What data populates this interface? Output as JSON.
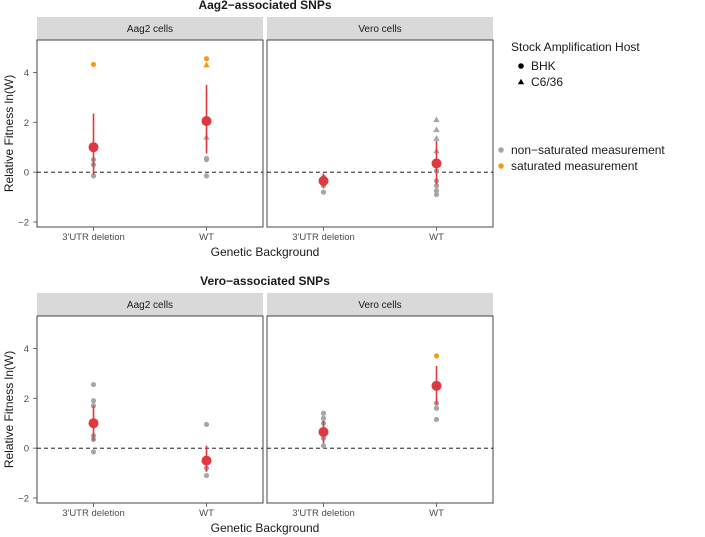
{
  "legend": {
    "shape_title": "Stock Amplification Host",
    "shapes": [
      {
        "label": "BHK",
        "shape": "circle"
      },
      {
        "label": "C6/36",
        "shape": "triangle"
      }
    ],
    "colors": [
      {
        "label": "non−saturated measurement",
        "color": "#a6a6a6"
      },
      {
        "label": "saturated measurement",
        "color": "#f39c1b"
      }
    ]
  },
  "colors": {
    "mean": "#e0383e",
    "nonsat": "#a6a6a6",
    "sat": "#f39c1b",
    "strip": "#d9d9d9",
    "border": "#333333"
  },
  "chart_data": [
    {
      "type": "scatter",
      "title": "Aag2−associated SNPs",
      "xlabel": "Genetic Background",
      "ylabel": "Relative Fitness ln(W)",
      "categories": [
        "3'UTR deletion",
        "WT"
      ],
      "ylim": [
        -2.2,
        5.3
      ],
      "yticks": [
        -2,
        0,
        2,
        4
      ],
      "reference_line": 0,
      "panels": [
        {
          "strip": "Aag2 cells",
          "means": [
            {
              "x": "3'UTR deletion",
              "mean": 1.0,
              "lower": -0.1,
              "upper": 2.35
            },
            {
              "x": "WT",
              "mean": 2.05,
              "lower": 0.75,
              "upper": 3.5
            }
          ],
          "points": [
            {
              "x": "3'UTR deletion",
              "y": 4.32,
              "host": "BHK",
              "saturated": true
            },
            {
              "x": "3'UTR deletion",
              "y": 0.5,
              "host": "BHK",
              "saturated": false
            },
            {
              "x": "3'UTR deletion",
              "y": 0.3,
              "host": "BHK",
              "saturated": false
            },
            {
              "x": "3'UTR deletion",
              "y": -0.15,
              "host": "BHK",
              "saturated": false
            },
            {
              "x": "WT",
              "y": 4.55,
              "host": "BHK",
              "saturated": true
            },
            {
              "x": "WT",
              "y": 4.3,
              "host": "C6/36",
              "saturated": true
            },
            {
              "x": "WT",
              "y": 1.4,
              "host": "C6/36",
              "saturated": false
            },
            {
              "x": "WT",
              "y": 0.55,
              "host": "BHK",
              "saturated": false
            },
            {
              "x": "WT",
              "y": 0.5,
              "host": "BHK",
              "saturated": false
            },
            {
              "x": "WT",
              "y": -0.15,
              "host": "BHK",
              "saturated": false
            }
          ]
        },
        {
          "strip": "Vero cells",
          "means": [
            {
              "x": "3'UTR deletion",
              "mean": -0.35,
              "lower": -0.6,
              "upper": -0.05
            },
            {
              "x": "WT",
              "mean": 0.35,
              "lower": -0.5,
              "upper": 1.25
            }
          ],
          "points": [
            {
              "x": "3'UTR deletion",
              "y": -0.2,
              "host": "BHK",
              "saturated": false
            },
            {
              "x": "3'UTR deletion",
              "y": -0.55,
              "host": "BHK",
              "saturated": false
            },
            {
              "x": "3'UTR deletion",
              "y": -0.8,
              "host": "BHK",
              "saturated": false
            },
            {
              "x": "WT",
              "y": 2.1,
              "host": "C6/36",
              "saturated": false
            },
            {
              "x": "WT",
              "y": 1.7,
              "host": "C6/36",
              "saturated": false
            },
            {
              "x": "WT",
              "y": 1.35,
              "host": "C6/36",
              "saturated": false
            },
            {
              "x": "WT",
              "y": 0.85,
              "host": "C6/36",
              "saturated": false
            },
            {
              "x": "WT",
              "y": 0.05,
              "host": "BHK",
              "saturated": false
            },
            {
              "x": "WT",
              "y": -0.35,
              "host": "BHK",
              "saturated": false
            },
            {
              "x": "WT",
              "y": -0.55,
              "host": "BHK",
              "saturated": false
            },
            {
              "x": "WT",
              "y": -0.75,
              "host": "BHK",
              "saturated": false
            },
            {
              "x": "WT",
              "y": -0.9,
              "host": "BHK",
              "saturated": false
            }
          ]
        }
      ]
    },
    {
      "type": "scatter",
      "title": "Vero−associated SNPs",
      "xlabel": "Genetic Background",
      "ylabel": "Relative Fitness ln(W)",
      "categories": [
        "3'UTR deletion",
        "WT"
      ],
      "ylim": [
        -2.2,
        5.3
      ],
      "yticks": [
        -2,
        0,
        2,
        4
      ],
      "reference_line": 0,
      "panels": [
        {
          "strip": "Aag2 cells",
          "means": [
            {
              "x": "3'UTR deletion",
              "mean": 1.0,
              "lower": 0.3,
              "upper": 1.7
            },
            {
              "x": "WT",
              "mean": -0.5,
              "lower": -0.95,
              "upper": 0.1
            }
          ],
          "points": [
            {
              "x": "3'UTR deletion",
              "y": 2.55,
              "host": "BHK",
              "saturated": false
            },
            {
              "x": "3'UTR deletion",
              "y": 1.9,
              "host": "BHK",
              "saturated": false
            },
            {
              "x": "3'UTR deletion",
              "y": 1.7,
              "host": "BHK",
              "saturated": false
            },
            {
              "x": "3'UTR deletion",
              "y": 0.5,
              "host": "BHK",
              "saturated": false
            },
            {
              "x": "3'UTR deletion",
              "y": 0.35,
              "host": "BHK",
              "saturated": false
            },
            {
              "x": "3'UTR deletion",
              "y": -0.15,
              "host": "BHK",
              "saturated": false
            },
            {
              "x": "WT",
              "y": 0.95,
              "host": "BHK",
              "saturated": false
            },
            {
              "x": "WT",
              "y": -0.6,
              "host": "BHK",
              "saturated": false
            },
            {
              "x": "WT",
              "y": -0.8,
              "host": "BHK",
              "saturated": false
            },
            {
              "x": "WT",
              "y": -1.1,
              "host": "BHK",
              "saturated": false
            }
          ]
        },
        {
          "strip": "Vero cells",
          "means": [
            {
              "x": "3'UTR deletion",
              "mean": 0.65,
              "lower": 0.2,
              "upper": 1.1
            },
            {
              "x": "WT",
              "mean": 2.5,
              "lower": 1.75,
              "upper": 3.3
            }
          ],
          "points": [
            {
              "x": "3'UTR deletion",
              "y": 1.4,
              "host": "BHK",
              "saturated": false
            },
            {
              "x": "3'UTR deletion",
              "y": 1.2,
              "host": "BHK",
              "saturated": false
            },
            {
              "x": "3'UTR deletion",
              "y": 1.0,
              "host": "BHK",
              "saturated": false
            },
            {
              "x": "3'UTR deletion",
              "y": 0.6,
              "host": "BHK",
              "saturated": false
            },
            {
              "x": "3'UTR deletion",
              "y": 0.4,
              "host": "BHK",
              "saturated": false
            },
            {
              "x": "3'UTR deletion",
              "y": 0.1,
              "host": "BHK",
              "saturated": false
            },
            {
              "x": "WT",
              "y": 3.7,
              "host": "BHK",
              "saturated": true
            },
            {
              "x": "WT",
              "y": 1.8,
              "host": "BHK",
              "saturated": false
            },
            {
              "x": "WT",
              "y": 1.6,
              "host": "BHK",
              "saturated": false
            },
            {
              "x": "WT",
              "y": 1.15,
              "host": "BHK",
              "saturated": false
            }
          ]
        }
      ]
    }
  ]
}
